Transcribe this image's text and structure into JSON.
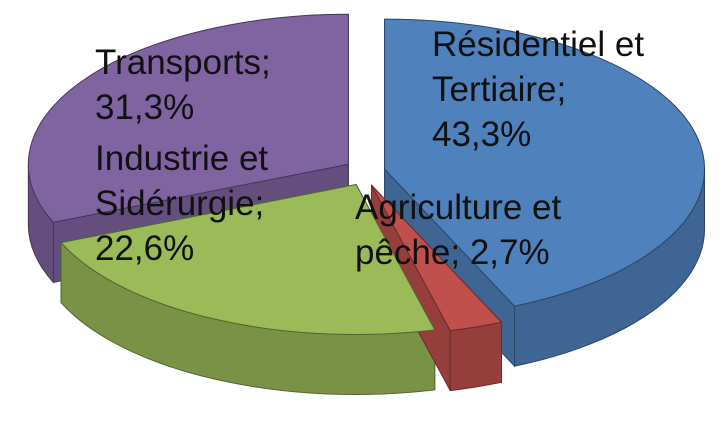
{
  "chart_data": {
    "type": "pie",
    "categories": [
      "Résidentiel et Tertiaire;",
      "Agriculture et pêche;",
      "Industrie et Sidérurgie;",
      "Transports;"
    ],
    "values": [
      43.3,
      2.7,
      22.6,
      31.3
    ],
    "value_labels": [
      "43,3%",
      "2,7%",
      "22,6%",
      "31,3%"
    ],
    "colors": [
      "#4f81bd",
      "#c0504d",
      "#9bbb59",
      "#8064a2"
    ]
  }
}
